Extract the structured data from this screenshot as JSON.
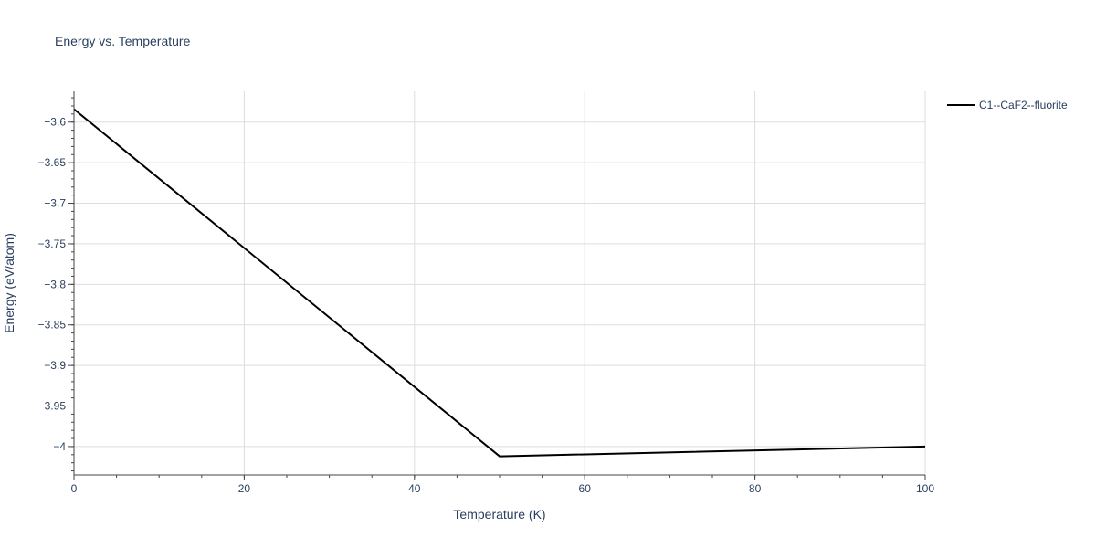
{
  "chart_data": {
    "type": "line",
    "title": "Energy vs. Temperature",
    "xlabel": "Temperature (K)",
    "ylabel": "Energy (eV/atom)",
    "xlim": [
      0,
      100
    ],
    "ylim": [
      -4.035,
      -3.562
    ],
    "x_ticks": [
      0,
      20,
      40,
      60,
      80,
      100
    ],
    "x_tick_labels": [
      "0",
      "20",
      "40",
      "60",
      "80",
      "100"
    ],
    "y_ticks": [
      -3.6,
      -3.65,
      -3.7,
      -3.75,
      -3.8,
      -3.85,
      -3.9,
      -3.95,
      -4.0
    ],
    "y_tick_labels": [
      "−3.6",
      "−3.65",
      "−3.7",
      "−3.75",
      "−3.8",
      "−3.85",
      "−3.9",
      "−3.95",
      "−4"
    ],
    "x_minor_step": 5,
    "y_minor_step": 0.01,
    "grid": true,
    "legend_position": "top-right",
    "series": [
      {
        "name": "C1--CaF2--fluorite",
        "color": "#000000",
        "x": [
          0,
          50,
          100
        ],
        "y": [
          -3.584,
          -4.012,
          -4.0
        ]
      }
    ]
  }
}
